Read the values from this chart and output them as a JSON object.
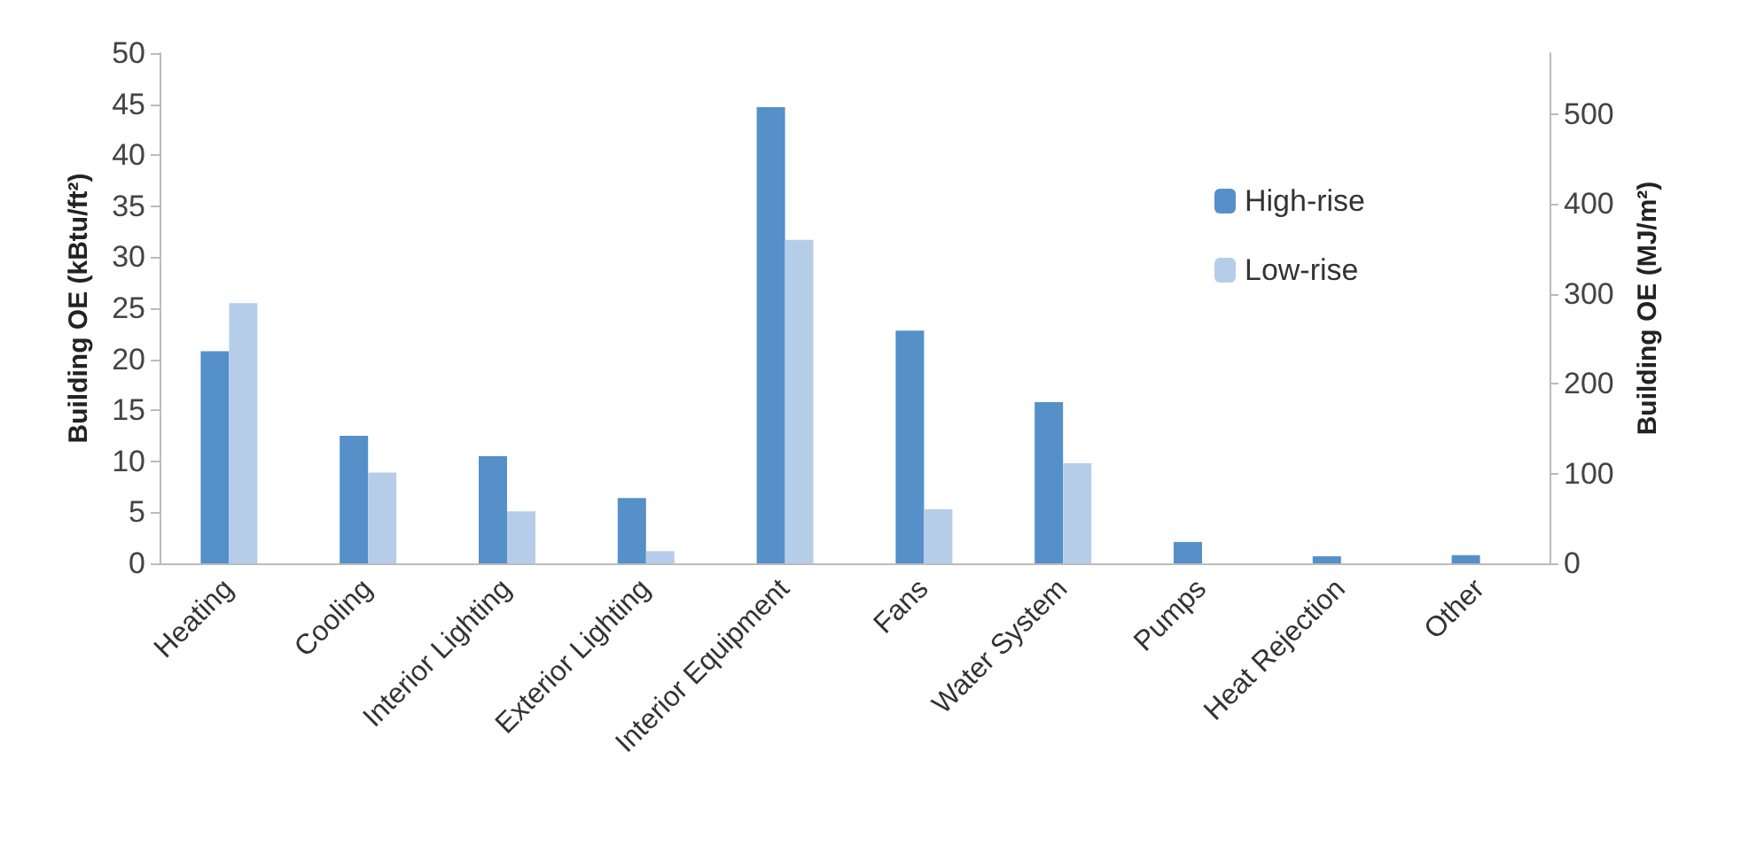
{
  "chart_data": {
    "type": "bar",
    "categories": [
      "Heating",
      "Cooling",
      "Interior Lighting",
      "Exterior Lighting",
      "Interior Equipment",
      "Fans",
      "Water System",
      "Pumps",
      "Heat Rejection",
      "Other"
    ],
    "series": [
      {
        "name": "High-rise",
        "color": "#5590c8",
        "values": [
          20.8,
          12.5,
          10.5,
          6.4,
          44.7,
          22.8,
          15.8,
          2.1,
          0.7,
          0.8
        ]
      },
      {
        "name": "Low-rise",
        "color": "#b6cde9",
        "values": [
          25.5,
          8.9,
          5.1,
          1.2,
          31.7,
          5.3,
          9.8,
          0,
          0,
          0
        ]
      }
    ],
    "ylabel": "Building OE (kBtu/ft²)",
    "y2label": "Building OE (MJ/m²)",
    "ylim": [
      0,
      50
    ],
    "yticks": [
      0,
      5,
      10,
      15,
      20,
      25,
      30,
      35,
      40,
      45,
      50
    ],
    "y2lim": [
      0,
      568
    ],
    "y2ticks": [
      0,
      100,
      200,
      300,
      400,
      500
    ],
    "grid": false,
    "legend": "top right"
  }
}
